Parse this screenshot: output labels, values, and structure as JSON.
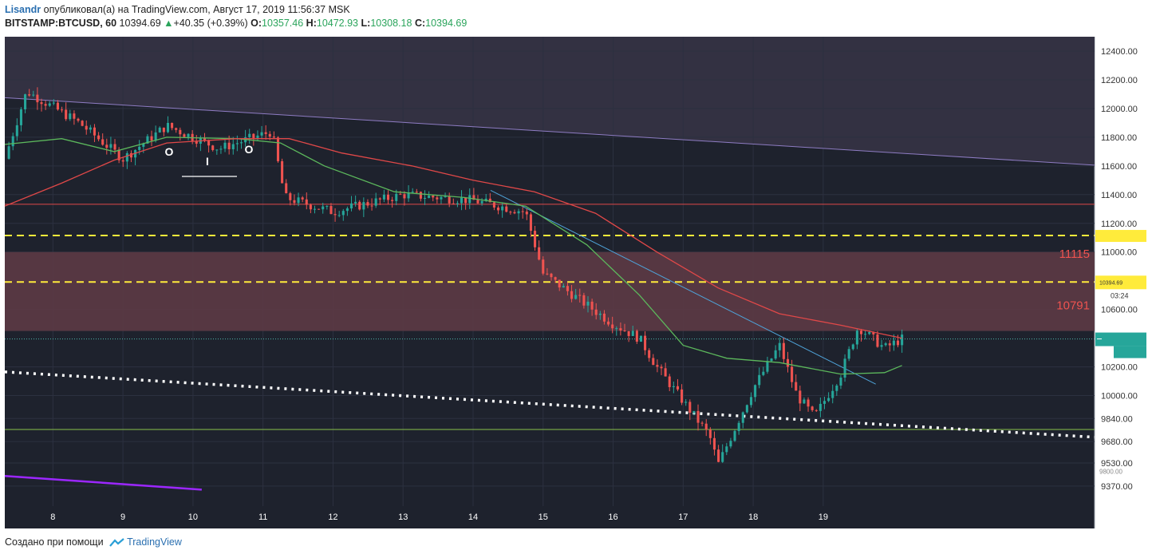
{
  "header": {
    "author": "Lisandr",
    "published_text": "опубликовал(а) на TradingView.com, Август 17, 2019 11:56:37 MSK",
    "symbol": "BITSTAMP:BTCUSD, 60",
    "last": "10394.69",
    "change": "+40.35 (+0.39%)",
    "open_label": "O:",
    "open": "10357.46",
    "high_label": "H:",
    "high": "10472.93",
    "low_label": "L:",
    "low": "10308.18",
    "close_label": "C:",
    "close": "10394.69"
  },
  "footer": {
    "text": "Создано при помощи",
    "brand": "TradingView"
  },
  "colors": {
    "up": "#26a69a",
    "down": "#ef5350",
    "background": "#1e222d",
    "zone": "#5c3a45",
    "ma_fast": "#5cb85c",
    "ma_slow": "#e04848",
    "level_dash": "#ffeb3b",
    "top_band": "#373447"
  },
  "chart_data": {
    "type": "candlestick",
    "title": "",
    "x_tick_labels": [
      "8",
      "9",
      "10",
      "11",
      "12",
      "13",
      "14",
      "15",
      "16",
      "17",
      "18",
      "19"
    ],
    "x_tick_positions": [
      0.9,
      1.7,
      2.5,
      3.3,
      4.1,
      4.9,
      5.7,
      6.5,
      7.3,
      8.1,
      8.9,
      9.7
    ],
    "xlim": [
      0.35,
      12.8
    ],
    "y_ticks": [
      12400,
      12200,
      12000,
      11800,
      11600,
      11400,
      11200,
      11000,
      10600,
      10200,
      10000,
      9840,
      9680,
      9530,
      9370
    ],
    "y_tick_labels": [
      "12400.00",
      "12200.00",
      "12000.00",
      "11800.00",
      "11600.00",
      "11400.00",
      "11200.00",
      "11000.00",
      "10600.00",
      "10200.00",
      "10000.00",
      "9840.00",
      "9680.00",
      "9530.00",
      "9370.00"
    ],
    "ylim": [
      9230,
      12500
    ],
    "price_labels": {
      "level_11115": "11115",
      "level_10791": "10791",
      "current_price": "10394.69",
      "countdown": "03:24",
      "secondary": "9800.00"
    },
    "resistance_zone": [
      10450,
      11000
    ],
    "horizontal_lines": [
      {
        "value": 11333,
        "style": "solid",
        "color": "#e04848"
      },
      {
        "value": 11115,
        "style": "dashed",
        "color": "#ffeb3b"
      },
      {
        "value": 10791,
        "style": "dashed",
        "color": "#ffeb3b"
      },
      {
        "value": 10394.69,
        "style": "dotted",
        "color": "#4db6ac"
      },
      {
        "value": 9764,
        "style": "solid",
        "color": "#8bc34a"
      }
    ],
    "pattern_labels": [
      "O",
      "I",
      "O"
    ],
    "trend_lines": [
      {
        "from": [
          0.35,
          12075
        ],
        "to": [
          12.8,
          11605
        ],
        "color": "#8e7cc3"
      },
      {
        "from": [
          0.35,
          10165
        ],
        "to": [
          12.8,
          9710
        ],
        "color": "#ffffff",
        "style": "dotted"
      },
      {
        "from": [
          5.9,
          11430
        ],
        "to": [
          10.3,
          10080
        ],
        "color": "#4fa3d9"
      },
      {
        "from": [
          0.35,
          9440
        ],
        "to": [
          2.6,
          9345
        ],
        "color": "#9c27ff"
      }
    ],
    "key_prices": [
      {
        "x": 0.35,
        "value": 11650
      },
      {
        "x": 0.6,
        "value": 12120
      },
      {
        "x": 1.2,
        "value": 11900
      },
      {
        "x": 1.7,
        "value": 11650
      },
      {
        "x": 2.2,
        "value": 11880
      },
      {
        "x": 2.8,
        "value": 11720
      },
      {
        "x": 3.4,
        "value": 11840
      },
      {
        "x": 3.55,
        "value": 11380
      },
      {
        "x": 4.1,
        "value": 11280
      },
      {
        "x": 4.9,
        "value": 11400
      },
      {
        "x": 5.7,
        "value": 11360
      },
      {
        "x": 6.3,
        "value": 11280
      },
      {
        "x": 6.5,
        "value": 10850
      },
      {
        "x": 7.3,
        "value": 10500
      },
      {
        "x": 7.6,
        "value": 10400
      },
      {
        "x": 7.8,
        "value": 10200
      },
      {
        "x": 8.4,
        "value": 9720
      },
      {
        "x": 8.5,
        "value": 9520
      },
      {
        "x": 8.9,
        "value": 10050
      },
      {
        "x": 9.2,
        "value": 10350
      },
      {
        "x": 9.4,
        "value": 10000
      },
      {
        "x": 9.6,
        "value": 9850
      },
      {
        "x": 9.9,
        "value": 10150
      },
      {
        "x": 10.1,
        "value": 10480
      },
      {
        "x": 10.4,
        "value": 10330
      },
      {
        "x": 10.6,
        "value": 10394.69
      }
    ],
    "ma_fast": [
      {
        "x": 0.35,
        "value": 11750
      },
      {
        "x": 1.0,
        "value": 11790
      },
      {
        "x": 1.6,
        "value": 11700
      },
      {
        "x": 2.2,
        "value": 11800
      },
      {
        "x": 3.0,
        "value": 11790
      },
      {
        "x": 3.5,
        "value": 11760
      },
      {
        "x": 4.0,
        "value": 11600
      },
      {
        "x": 4.8,
        "value": 11420
      },
      {
        "x": 5.6,
        "value": 11380
      },
      {
        "x": 6.3,
        "value": 11320
      },
      {
        "x": 7.0,
        "value": 11050
      },
      {
        "x": 7.6,
        "value": 10700
      },
      {
        "x": 8.1,
        "value": 10350
      },
      {
        "x": 8.6,
        "value": 10260
      },
      {
        "x": 9.2,
        "value": 10230
      },
      {
        "x": 9.9,
        "value": 10150
      },
      {
        "x": 10.4,
        "value": 10160
      },
      {
        "x": 10.6,
        "value": 10210
      }
    ],
    "ma_slow": [
      {
        "x": 0.35,
        "value": 11320
      },
      {
        "x": 1.0,
        "value": 11480
      },
      {
        "x": 1.6,
        "value": 11640
      },
      {
        "x": 2.2,
        "value": 11760
      },
      {
        "x": 3.0,
        "value": 11790
      },
      {
        "x": 3.6,
        "value": 11790
      },
      {
        "x": 4.2,
        "value": 11690
      },
      {
        "x": 5.0,
        "value": 11600
      },
      {
        "x": 5.7,
        "value": 11500
      },
      {
        "x": 6.4,
        "value": 11420
      },
      {
        "x": 7.1,
        "value": 11270
      },
      {
        "x": 7.8,
        "value": 11000
      },
      {
        "x": 8.5,
        "value": 10750
      },
      {
        "x": 9.2,
        "value": 10570
      },
      {
        "x": 9.9,
        "value": 10490
      },
      {
        "x": 10.6,
        "value": 10400
      }
    ]
  }
}
